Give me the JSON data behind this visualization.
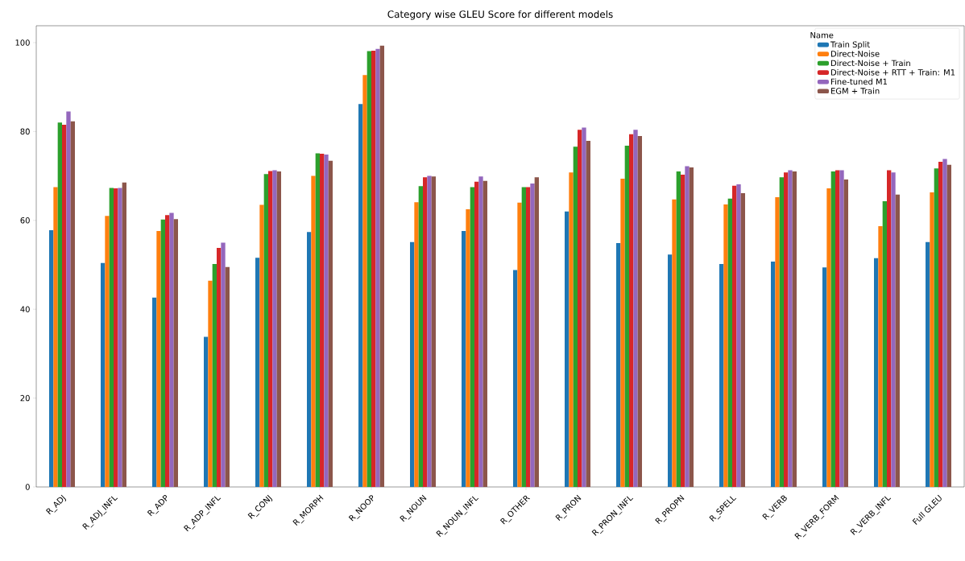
{
  "chart_data": {
    "type": "bar",
    "title": "Category wise GLEU Score for different models",
    "legend_title": "Name",
    "legend": "top right",
    "grid": false,
    "categories": [
      "R_ADJ",
      "R_ADJ_INFL",
      "R_ADP",
      "R_ADP_INFL",
      "R_CONJ",
      "R_MORPH",
      "R_NOOP",
      "R_NOUN",
      "R_NOUN_INFL",
      "R_OTHER",
      "R_PRON",
      "R_PRON_INFL",
      "R_PROPN",
      "R_SPELL",
      "R_VERB",
      "R_VERB_FORM",
      "R_VERB_INFL",
      "Full GLEU"
    ],
    "ylim": [
      0,
      103.8
    ],
    "yticks": [
      0,
      20,
      40,
      60,
      80,
      100
    ],
    "series": [
      {
        "name": "Train Split",
        "color": "#1f77b4",
        "values": [
          57.8,
          50.4,
          42.6,
          33.8,
          51.6,
          57.4,
          86.2,
          55.1,
          57.6,
          48.8,
          62.0,
          54.9,
          52.3,
          50.2,
          50.7,
          49.4,
          51.5,
          55.1
        ]
      },
      {
        "name": "Direct-Noise",
        "color": "#ff7f0e",
        "values": [
          67.5,
          61.0,
          57.6,
          46.4,
          63.5,
          70.0,
          92.7,
          64.1,
          62.5,
          64.0,
          70.8,
          69.4,
          64.7,
          63.6,
          65.2,
          67.2,
          58.7,
          66.3
        ]
      },
      {
        "name": "Direct-Noise + Train",
        "color": "#2ca02c",
        "values": [
          82.0,
          67.3,
          60.2,
          50.2,
          70.4,
          75.1,
          98.1,
          67.7,
          67.5,
          67.5,
          76.6,
          76.8,
          71.0,
          64.9,
          69.7,
          71.0,
          64.3,
          71.7
        ]
      },
      {
        "name": "Direct-Noise + RTT + Train: M1",
        "color": "#d62728",
        "values": [
          81.5,
          67.2,
          61.2,
          53.8,
          71.1,
          75.0,
          98.2,
          69.7,
          68.7,
          67.5,
          80.4,
          79.4,
          70.3,
          67.8,
          70.8,
          71.3,
          71.3,
          73.2
        ]
      },
      {
        "name": "Fine-tuned M1",
        "color": "#9467bd",
        "values": [
          84.5,
          67.3,
          61.7,
          55.0,
          71.3,
          74.8,
          98.6,
          70.0,
          69.9,
          68.3,
          80.9,
          80.4,
          72.2,
          68.1,
          71.3,
          71.3,
          70.8,
          73.8
        ]
      },
      {
        "name": "EGM + Train",
        "color": "#8c564b",
        "values": [
          82.3,
          68.5,
          60.3,
          49.5,
          71.0,
          73.4,
          99.3,
          69.9,
          68.9,
          69.7,
          77.9,
          79.0,
          71.9,
          66.1,
          71.0,
          69.2,
          65.8,
          72.5
        ]
      }
    ]
  }
}
